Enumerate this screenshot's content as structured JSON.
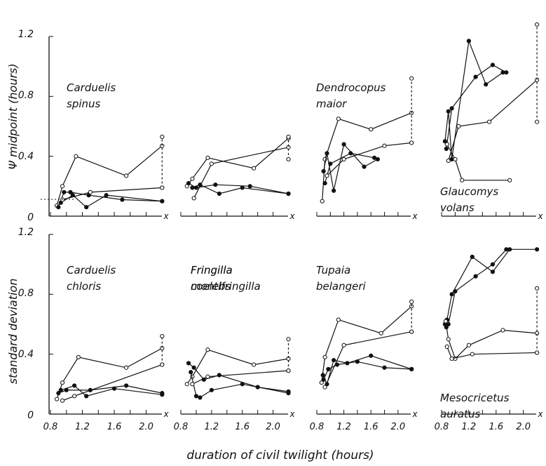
{
  "figure": {
    "ylabel_top": "Ψ midpoint (hours)",
    "ylabel_bottom": "standard deviation",
    "xlabel": "duration of civil twilight (hours)",
    "y_ticks": [
      "0",
      "0.4",
      "0.8",
      "1.2"
    ],
    "x_ticks": [
      "0.8",
      "1.2",
      "1.6",
      "2.0"
    ],
    "x_marker": "x"
  },
  "chart_data": [
    {
      "type": "line",
      "species": [
        "Carduelis",
        "spinus"
      ],
      "xlim": [
        0.8,
        2.25
      ],
      "ylim": [
        0,
        1.2
      ],
      "series": [
        {
          "marker": "open",
          "x": [
            0.88,
            0.95,
            1.12,
            1.75,
            2.2
          ],
          "y": [
            0.07,
            0.2,
            0.4,
            0.27,
            0.47
          ]
        },
        {
          "marker": "filled",
          "x": [
            0.9,
            0.97,
            1.05,
            1.28,
            1.7,
            2.2
          ],
          "y": [
            0.06,
            0.16,
            0.16,
            0.14,
            0.11,
            0.1
          ]
        },
        {
          "marker": "filled",
          "x": [
            0.93,
            1.08,
            1.25,
            1.5,
            2.2
          ],
          "y": [
            0.09,
            0.14,
            0.06,
            0.14,
            0.1
          ]
        },
        {
          "marker": "open",
          "x": [
            0.95,
            1.3,
            2.2
          ],
          "y": [
            0.11,
            0.16,
            0.19
          ]
        },
        {
          "marker": "dashed",
          "x": [
            2.2,
            2.2
          ],
          "y": [
            0.19,
            0.53
          ]
        }
      ]
    },
    {
      "type": "line",
      "species": [
        "Fringilla",
        "coelebs"
      ],
      "xlim": [
        0.8,
        2.25
      ],
      "ylim": [
        0,
        1.2
      ],
      "series": [
        {
          "marker": "open",
          "x": [
            0.88,
            0.95,
            1.15,
            1.75,
            2.2
          ],
          "y": [
            0.2,
            0.25,
            0.39,
            0.32,
            0.52
          ]
        },
        {
          "marker": "filled",
          "x": [
            0.9,
            1.0,
            1.25,
            1.7,
            2.2
          ],
          "y": [
            0.22,
            0.19,
            0.21,
            0.2,
            0.15
          ]
        },
        {
          "marker": "filled",
          "x": [
            0.95,
            1.05,
            1.3,
            1.6,
            2.2
          ],
          "y": [
            0.19,
            0.21,
            0.15,
            0.19,
            0.15
          ]
        },
        {
          "marker": "open",
          "x": [
            0.97,
            1.2,
            2.2
          ],
          "y": [
            0.12,
            0.35,
            0.46
          ]
        },
        {
          "marker": "dashed",
          "x": [
            2.2,
            2.2
          ],
          "y": [
            0.38,
            0.53
          ]
        }
      ]
    },
    {
      "type": "line",
      "species": [
        "Dendrocopus",
        "maior"
      ],
      "xlim": [
        0.8,
        2.25
      ],
      "ylim": [
        0,
        1.2
      ],
      "series": [
        {
          "marker": "open",
          "x": [
            0.88,
            0.92,
            1.12,
            1.6,
            2.2
          ],
          "y": [
            0.1,
            0.38,
            0.65,
            0.58,
            0.69
          ]
        },
        {
          "marker": "filled",
          "x": [
            0.9,
            0.95,
            1.05,
            1.2,
            1.5,
            1.7
          ],
          "y": [
            0.3,
            0.42,
            0.17,
            0.48,
            0.33,
            0.38
          ]
        },
        {
          "marker": "filled",
          "x": [
            0.92,
            1.0,
            1.3,
            1.65
          ],
          "y": [
            0.22,
            0.35,
            0.42,
            0.39
          ]
        },
        {
          "marker": "open",
          "x": [
            0.95,
            1.2,
            1.8,
            2.2
          ],
          "y": [
            0.27,
            0.38,
            0.47,
            0.49
          ]
        },
        {
          "marker": "dashed",
          "x": [
            2.2,
            2.2
          ],
          "y": [
            0.49,
            0.92
          ]
        }
      ]
    },
    {
      "type": "line",
      "species": [
        "Glaucomys",
        "volans"
      ],
      "xlim": [
        0.8,
        2.25
      ],
      "ylim": [
        0,
        1.2
      ],
      "series": [
        {
          "marker": "filled",
          "x": [
            0.85,
            0.9,
            0.95,
            1.2,
            1.45,
            1.7
          ],
          "y": [
            0.5,
            0.7,
            0.38,
            1.17,
            0.88,
            0.96
          ]
        },
        {
          "marker": "filled",
          "x": [
            0.87,
            0.95,
            1.3,
            1.55,
            1.75
          ],
          "y": [
            0.45,
            0.72,
            0.93,
            1.01,
            0.96
          ]
        },
        {
          "marker": "open",
          "x": [
            0.88,
            1.0,
            1.1,
            1.8
          ],
          "y": [
            0.48,
            0.38,
            0.24,
            0.24
          ]
        },
        {
          "marker": "open",
          "x": [
            0.9,
            1.05,
            1.5,
            2.2
          ],
          "y": [
            0.37,
            0.6,
            0.63,
            0.91
          ]
        },
        {
          "marker": "dashed",
          "x": [
            2.2,
            2.2
          ],
          "y": [
            0.63,
            1.28
          ]
        }
      ]
    },
    {
      "type": "line",
      "species": [
        "Carduelis",
        "chloris"
      ],
      "xlim": [
        0.8,
        2.25
      ],
      "ylim": [
        0,
        1.2
      ],
      "series": [
        {
          "marker": "open",
          "x": [
            0.88,
            0.95,
            1.15,
            1.75,
            2.2
          ],
          "y": [
            0.1,
            0.21,
            0.38,
            0.31,
            0.44
          ]
        },
        {
          "marker": "filled",
          "x": [
            0.9,
            1.0,
            1.3,
            1.75,
            2.2
          ],
          "y": [
            0.14,
            0.16,
            0.16,
            0.19,
            0.14
          ]
        },
        {
          "marker": "filled",
          "x": [
            0.93,
            1.1,
            1.25,
            1.6,
            2.2
          ],
          "y": [
            0.16,
            0.19,
            0.12,
            0.17,
            0.13
          ]
        },
        {
          "marker": "open",
          "x": [
            0.95,
            1.1,
            2.2
          ],
          "y": [
            0.09,
            0.12,
            0.33
          ]
        },
        {
          "marker": "dashed",
          "x": [
            2.2,
            2.2
          ],
          "y": [
            0.33,
            0.52
          ]
        }
      ]
    },
    {
      "type": "line",
      "species": [
        "Fringilla",
        "montifringilla"
      ],
      "xlim": [
        0.8,
        2.25
      ],
      "ylim": [
        0,
        1.2
      ],
      "series": [
        {
          "marker": "open",
          "x": [
            0.88,
            0.95,
            1.15,
            1.75,
            2.2
          ],
          "y": [
            0.2,
            0.25,
            0.43,
            0.33,
            0.37
          ]
        },
        {
          "marker": "filled",
          "x": [
            0.9,
            0.97,
            1.1,
            1.3,
            1.8,
            2.2
          ],
          "y": [
            0.34,
            0.31,
            0.23,
            0.26,
            0.18,
            0.15
          ]
        },
        {
          "marker": "filled",
          "x": [
            0.93,
            1.0,
            1.05,
            1.2,
            1.6,
            2.2
          ],
          "y": [
            0.28,
            0.12,
            0.11,
            0.16,
            0.2,
            0.14
          ]
        },
        {
          "marker": "open",
          "x": [
            0.95,
            1.15,
            2.2
          ],
          "y": [
            0.2,
            0.25,
            0.29
          ]
        },
        {
          "marker": "dashed",
          "x": [
            2.2,
            2.2
          ],
          "y": [
            0.29,
            0.5
          ]
        }
      ]
    },
    {
      "type": "line",
      "species": [
        "Tupaia",
        "belangeri"
      ],
      "xlim": [
        0.8,
        2.25
      ],
      "ylim": [
        0,
        1.2
      ],
      "series": [
        {
          "marker": "open",
          "x": [
            0.87,
            0.92,
            1.12,
            1.75,
            2.2
          ],
          "y": [
            0.21,
            0.38,
            0.63,
            0.54,
            0.72
          ]
        },
        {
          "marker": "filled",
          "x": [
            0.89,
            0.95,
            1.05,
            1.25,
            1.6,
            2.2
          ],
          "y": [
            0.26,
            0.2,
            0.36,
            0.34,
            0.39,
            0.3
          ]
        },
        {
          "marker": "filled",
          "x": [
            0.9,
            0.97,
            1.1,
            1.4,
            1.8,
            2.2
          ],
          "y": [
            0.23,
            0.3,
            0.33,
            0.35,
            0.31,
            0.3
          ]
        },
        {
          "marker": "open",
          "x": [
            0.92,
            1.2,
            2.2
          ],
          "y": [
            0.18,
            0.46,
            0.55
          ]
        },
        {
          "marker": "dashed",
          "x": [
            2.2,
            2.2
          ],
          "y": [
            0.55,
            0.75
          ]
        }
      ]
    },
    {
      "type": "line",
      "species": [
        "Mesocricetus",
        "auratus"
      ],
      "xlim": [
        0.8,
        2.25
      ],
      "ylim": [
        0,
        1.2
      ],
      "series": [
        {
          "marker": "filled",
          "x": [
            0.85,
            0.88,
            0.95,
            1.25,
            1.55,
            1.8,
            2.2
          ],
          "y": [
            0.6,
            0.63,
            0.8,
            1.05,
            0.95,
            1.1,
            1.1
          ]
        },
        {
          "marker": "filled",
          "x": [
            0.87,
            0.9,
            1.0,
            1.3,
            1.55,
            1.75
          ],
          "y": [
            0.58,
            0.6,
            0.82,
            0.92,
            1.0,
            1.1
          ]
        },
        {
          "marker": "open",
          "x": [
            0.86,
            0.9,
            1.0,
            1.2,
            1.7,
            2.2
          ],
          "y": [
            0.62,
            0.5,
            0.37,
            0.46,
            0.56,
            0.54
          ]
        },
        {
          "marker": "open",
          "x": [
            0.88,
            0.95,
            1.25,
            2.2
          ],
          "y": [
            0.45,
            0.37,
            0.4,
            0.41
          ]
        },
        {
          "marker": "dashed",
          "x": [
            2.2,
            2.2
          ],
          "y": [
            0.41,
            0.84
          ]
        }
      ]
    }
  ]
}
